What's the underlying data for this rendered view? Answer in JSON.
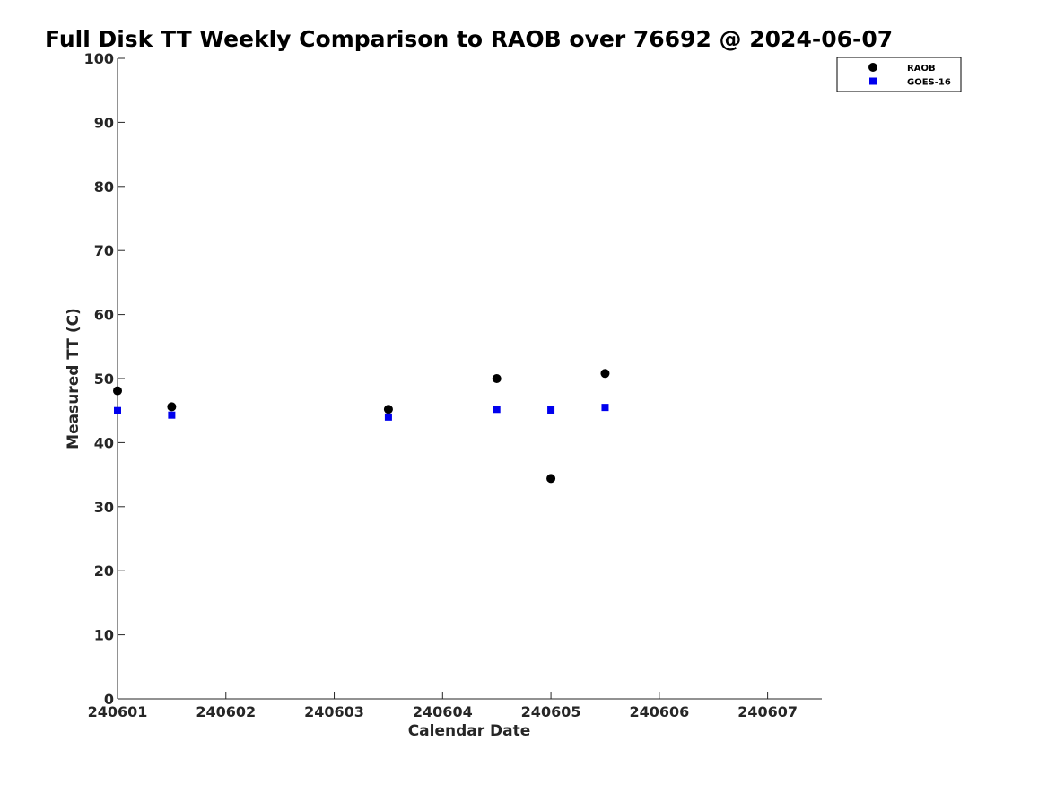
{
  "chart_data": {
    "type": "scatter",
    "title": "Full Disk TT Weekly Comparison to RAOB over 76692 @ 2024-06-07",
    "xlabel": "Calendar Date",
    "ylabel": "Measured TT (C)",
    "xlim": [
      240601,
      240607.5
    ],
    "ylim": [
      0,
      100
    ],
    "xticks": [
      {
        "value": 240601,
        "label": "240601"
      },
      {
        "value": 240602,
        "label": "240602"
      },
      {
        "value": 240603,
        "label": "240603"
      },
      {
        "value": 240604,
        "label": "240604"
      },
      {
        "value": 240605,
        "label": "240605"
      },
      {
        "value": 240606,
        "label": "240606"
      },
      {
        "value": 240607,
        "label": "240607"
      }
    ],
    "yticks": [
      {
        "value": 0,
        "label": "0"
      },
      {
        "value": 10,
        "label": "10"
      },
      {
        "value": 20,
        "label": "20"
      },
      {
        "value": 30,
        "label": "30"
      },
      {
        "value": 40,
        "label": "40"
      },
      {
        "value": 50,
        "label": "50"
      },
      {
        "value": 60,
        "label": "60"
      },
      {
        "value": 70,
        "label": "70"
      },
      {
        "value": 80,
        "label": "80"
      },
      {
        "value": 90,
        "label": "90"
      },
      {
        "value": 100,
        "label": "100"
      }
    ],
    "grid": false,
    "legend_position": "top-right",
    "series": [
      {
        "name": "RAOB",
        "marker": "circle",
        "color": "#000000",
        "points": [
          {
            "x": 240601.0,
            "y": 48.1
          },
          {
            "x": 240601.5,
            "y": 45.6
          },
          {
            "x": 240603.5,
            "y": 45.2
          },
          {
            "x": 240604.5,
            "y": 50.0
          },
          {
            "x": 240605.0,
            "y": 34.4
          },
          {
            "x": 240605.5,
            "y": 50.8
          }
        ]
      },
      {
        "name": "GOES-16",
        "marker": "square",
        "color": "#0000ee",
        "points": [
          {
            "x": 240601.0,
            "y": 45.0
          },
          {
            "x": 240601.5,
            "y": 44.3
          },
          {
            "x": 240603.5,
            "y": 44.0
          },
          {
            "x": 240604.5,
            "y": 45.2
          },
          {
            "x": 240605.0,
            "y": 45.1
          },
          {
            "x": 240605.5,
            "y": 45.5
          }
        ]
      }
    ]
  }
}
